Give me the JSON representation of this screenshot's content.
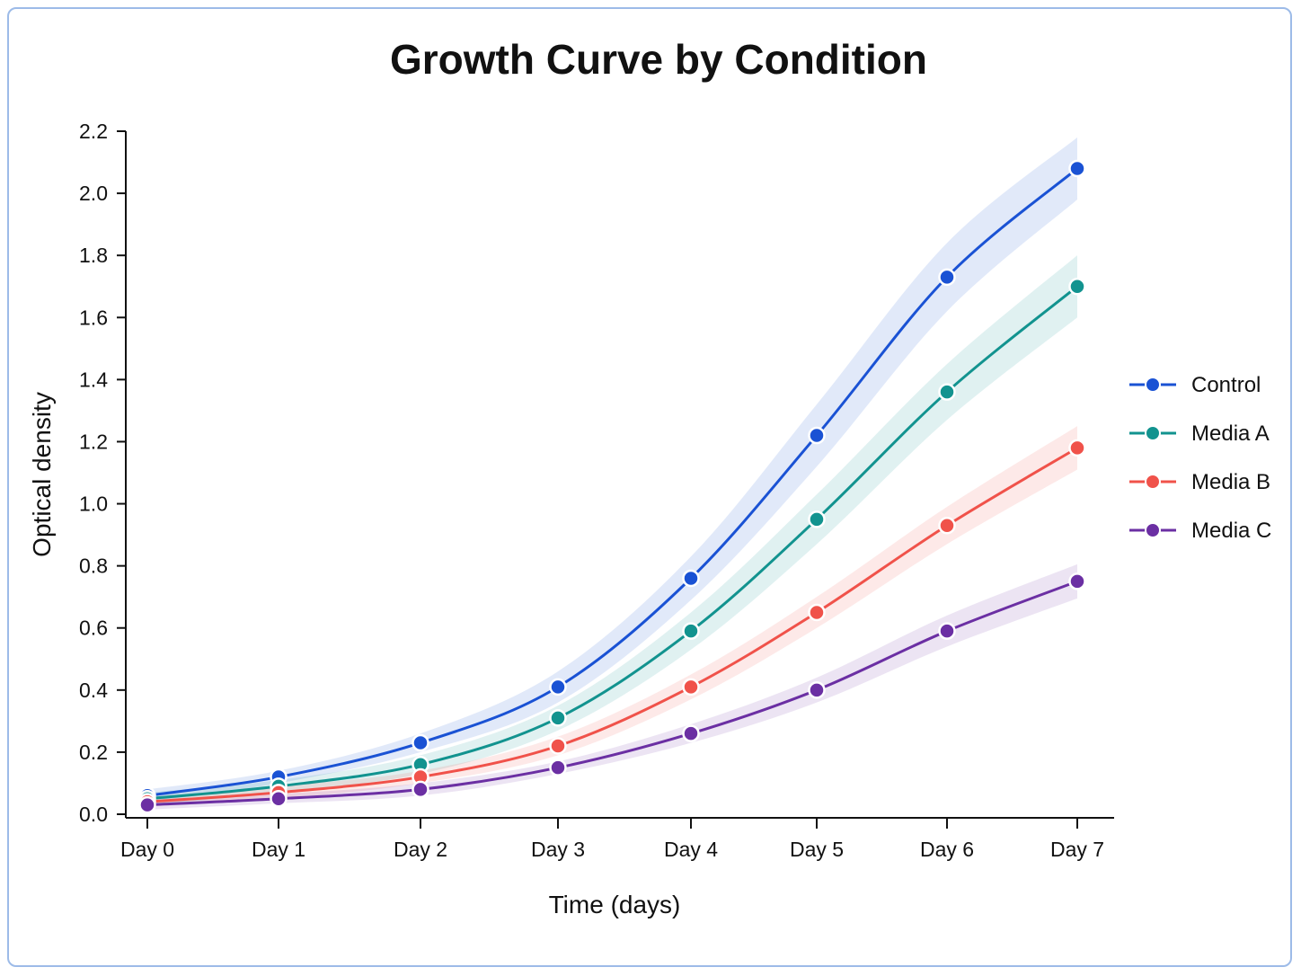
{
  "chart_data": {
    "type": "line",
    "title": "Growth Curve by Condition",
    "xlabel": "Time (days)",
    "ylabel": "Optical density",
    "categories": [
      "Day 0",
      "Day 1",
      "Day 2",
      "Day 3",
      "Day 4",
      "Day 5",
      "Day 6",
      "Day 7"
    ],
    "ylim": [
      0,
      2.2
    ],
    "yticks": [
      "0.0",
      "0.2",
      "0.4",
      "0.6",
      "0.8",
      "1.0",
      "1.2",
      "1.4",
      "1.6",
      "1.8",
      "2.0",
      "2.2"
    ],
    "grid": false,
    "legend_position": "right",
    "confidence_band": true,
    "series": [
      {
        "name": "Control",
        "color": "#1a52d4",
        "values": [
          0.06,
          0.12,
          0.23,
          0.41,
          0.76,
          1.22,
          1.73,
          2.08
        ],
        "band": [
          0.02,
          0.02,
          0.03,
          0.05,
          0.07,
          0.1,
          0.11,
          0.1
        ]
      },
      {
        "name": "Media A",
        "color": "#12938f",
        "values": [
          0.05,
          0.09,
          0.16,
          0.31,
          0.59,
          0.95,
          1.36,
          1.7
        ],
        "band": [
          0.02,
          0.02,
          0.03,
          0.04,
          0.06,
          0.08,
          0.09,
          0.1
        ]
      },
      {
        "name": "Media B",
        "color": "#f0524a",
        "values": [
          0.04,
          0.07,
          0.12,
          0.22,
          0.41,
          0.65,
          0.93,
          1.18
        ],
        "band": [
          0.015,
          0.02,
          0.02,
          0.03,
          0.04,
          0.05,
          0.06,
          0.07
        ]
      },
      {
        "name": "Media C",
        "color": "#6b2fa3",
        "values": [
          0.03,
          0.05,
          0.08,
          0.15,
          0.26,
          0.4,
          0.59,
          0.75
        ],
        "band": [
          0.015,
          0.015,
          0.02,
          0.02,
          0.03,
          0.04,
          0.05,
          0.055
        ]
      }
    ]
  }
}
